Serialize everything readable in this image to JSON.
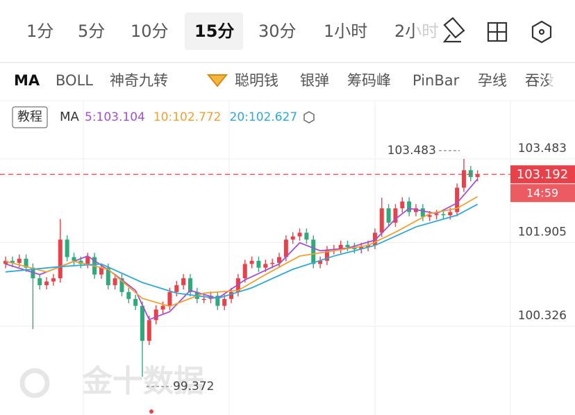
{
  "tabs": [
    "1分",
    "5分",
    "10分",
    "15分",
    "30分",
    "1小时",
    "2小时"
  ],
  "selected_tab": 3,
  "indicators": [
    "MA",
    "BOLL",
    "神奇九转",
    "聪明钱",
    "银弹",
    "筹码峰",
    "PinBar",
    "孕线",
    "吞没"
  ],
  "tutorial": "教程",
  "watermark": "金十数据",
  "chart_data": {
    "type": "candlestick",
    "indicator": "MA",
    "time_label": "14:59",
    "yticks": [
      103.483,
      101.905,
      100.326
    ],
    "ylim": [
      99.1,
      103.69
    ],
    "up_color": "#e8414a",
    "down_color": "#2faa7a",
    "candles": [
      [
        101.5,
        101.64,
        101.42,
        101.56
      ],
      [
        101.56,
        101.64,
        101.44,
        101.52
      ],
      [
        101.52,
        101.68,
        101.44,
        101.6
      ],
      [
        101.6,
        101.68,
        101.35,
        101.43
      ],
      [
        101.43,
        101.51,
        100.27,
        101.23
      ],
      [
        101.23,
        101.31,
        101.02,
        101.1
      ],
      [
        101.1,
        101.25,
        101.02,
        101.17
      ],
      [
        101.17,
        101.31,
        101.09,
        101.23
      ],
      [
        101.23,
        102.35,
        101.15,
        101.96
      ],
      [
        101.96,
        102.04,
        101.55,
        101.63
      ],
      [
        101.63,
        101.71,
        101.48,
        101.56
      ],
      [
        101.56,
        101.64,
        101.42,
        101.5
      ],
      [
        101.5,
        101.71,
        101.42,
        101.63
      ],
      [
        101.63,
        101.71,
        101.22,
        101.3
      ],
      [
        101.3,
        101.51,
        101.22,
        101.43
      ],
      [
        101.43,
        101.51,
        101.02,
        101.1
      ],
      [
        101.1,
        101.31,
        101.02,
        101.23
      ],
      [
        101.23,
        101.31,
        100.89,
        100.97
      ],
      [
        100.97,
        101.05,
        100.76,
        100.84
      ],
      [
        100.84,
        100.92,
        100.63,
        100.71
      ],
      [
        100.71,
        100.79,
        99.372,
        100.05
      ],
      [
        100.05,
        100.52,
        99.97,
        100.44
      ],
      [
        100.44,
        100.72,
        100.36,
        100.64
      ],
      [
        100.64,
        100.79,
        100.56,
        100.71
      ],
      [
        100.71,
        101.05,
        100.63,
        100.97
      ],
      [
        100.97,
        101.18,
        100.89,
        101.1
      ],
      [
        101.1,
        101.31,
        101.02,
        101.23
      ],
      [
        101.23,
        101.31,
        100.89,
        100.97
      ],
      [
        100.97,
        101.05,
        100.76,
        100.84
      ],
      [
        100.84,
        100.92,
        100.76,
        100.84
      ],
      [
        100.84,
        100.98,
        100.76,
        100.9
      ],
      [
        100.9,
        100.98,
        100.63,
        100.71
      ],
      [
        100.71,
        100.92,
        100.63,
        100.84
      ],
      [
        100.84,
        101.05,
        100.76,
        100.97
      ],
      [
        100.97,
        101.31,
        100.89,
        101.23
      ],
      [
        101.23,
        101.58,
        101.15,
        101.5
      ],
      [
        101.5,
        101.64,
        101.42,
        101.56
      ],
      [
        101.56,
        101.64,
        101.35,
        101.43
      ],
      [
        101.43,
        101.58,
        101.35,
        101.5
      ],
      [
        101.5,
        101.6,
        101.42,
        101.52
      ],
      [
        101.52,
        101.71,
        101.44,
        101.63
      ],
      [
        101.63,
        102.04,
        101.55,
        101.96
      ],
      [
        101.96,
        102.1,
        101.88,
        102.02
      ],
      [
        102.02,
        102.17,
        101.94,
        102.09
      ],
      [
        102.09,
        102.17,
        101.88,
        101.96
      ],
      [
        101.96,
        102.04,
        101.42,
        101.5
      ],
      [
        101.5,
        101.64,
        101.42,
        101.56
      ],
      [
        101.56,
        101.84,
        101.48,
        101.76
      ],
      [
        101.76,
        101.86,
        101.68,
        101.78
      ],
      [
        101.78,
        101.94,
        101.7,
        101.86
      ],
      [
        101.86,
        101.94,
        101.74,
        101.82
      ],
      [
        101.82,
        101.9,
        101.7,
        101.78
      ],
      [
        101.78,
        101.9,
        101.7,
        101.82
      ],
      [
        101.82,
        101.94,
        101.74,
        101.86
      ],
      [
        101.86,
        102.17,
        101.78,
        102.09
      ],
      [
        102.09,
        102.75,
        102.01,
        102.55
      ],
      [
        102.55,
        102.63,
        102.2,
        102.28
      ],
      [
        102.28,
        102.63,
        102.2,
        102.55
      ],
      [
        102.55,
        102.76,
        102.47,
        102.68
      ],
      [
        102.68,
        102.76,
        102.4,
        102.48
      ],
      [
        102.48,
        102.63,
        102.4,
        102.55
      ],
      [
        102.55,
        102.63,
        102.31,
        102.39
      ],
      [
        102.39,
        102.5,
        102.31,
        102.42
      ],
      [
        102.42,
        102.52,
        102.34,
        102.44
      ],
      [
        102.44,
        102.52,
        102.34,
        102.42
      ],
      [
        102.42,
        102.56,
        102.34,
        102.48
      ],
      [
        102.48,
        103.02,
        102.4,
        102.94
      ],
      [
        102.94,
        103.483,
        102.86,
        103.27
      ],
      [
        103.27,
        103.35,
        103.06,
        103.14
      ],
      [
        103.14,
        103.27,
        103.06,
        103.192
      ]
    ],
    "high_index": 67,
    "low_index": 20,
    "series": [
      {
        "name": "5:103.104",
        "color": "#a34fd3",
        "x": [
          0,
          5,
          8,
          12,
          16,
          19,
          21,
          24,
          27,
          31,
          35,
          40,
          43,
          46,
          50,
          54,
          57,
          59,
          63,
          66,
          69
        ],
        "values": [
          101.5,
          101.3,
          101.45,
          101.65,
          101.3,
          101.0,
          100.45,
          100.6,
          101.0,
          100.85,
          101.2,
          101.5,
          101.9,
          101.75,
          101.8,
          101.95,
          102.35,
          102.55,
          102.45,
          102.65,
          103.104
        ]
      },
      {
        "name": "10:102.772",
        "color": "#f0a030",
        "x": [
          0,
          6,
          10,
          15,
          20,
          24,
          29,
          34,
          38,
          43,
          48,
          53,
          57,
          62,
          66,
          69
        ],
        "values": [
          101.55,
          101.35,
          101.55,
          101.4,
          100.85,
          100.7,
          100.95,
          101.0,
          101.3,
          101.65,
          101.75,
          101.85,
          102.1,
          102.45,
          102.55,
          102.772
        ]
      },
      {
        "name": "20:102.627",
        "color": "#2fa8d8",
        "x": [
          0,
          8,
          14,
          20,
          25,
          31,
          36,
          42,
          48,
          54,
          60,
          66,
          69
        ],
        "values": [
          101.35,
          101.45,
          101.5,
          101.15,
          100.95,
          100.85,
          101.05,
          101.4,
          101.65,
          101.85,
          102.2,
          102.42,
          102.627
        ]
      }
    ]
  }
}
